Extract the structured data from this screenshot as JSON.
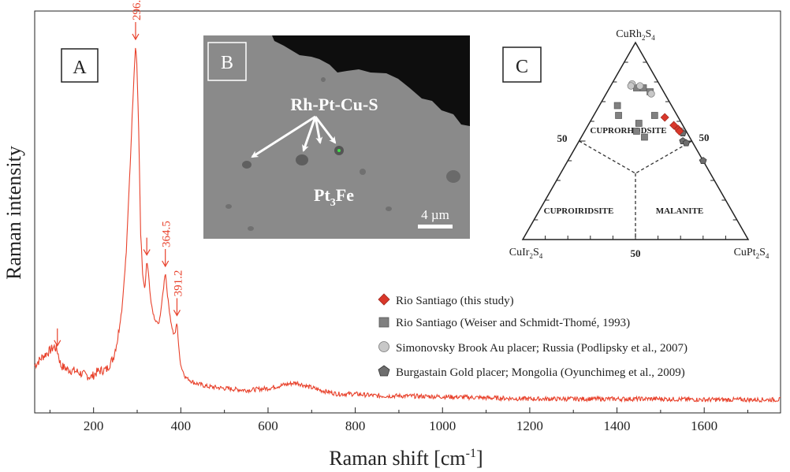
{
  "chart_data": [
    {
      "type": "line",
      "panel_label": "A",
      "xlabel": "Raman shift [cm",
      "xlabel_sup": "-1",
      "xlabel_end": "]",
      "ylabel": "Raman intensity",
      "xlim": [
        65,
        1775
      ],
      "ylim": [
        0,
        1
      ],
      "x_ticks": [
        200,
        400,
        600,
        800,
        1000,
        1200,
        1400,
        1600
      ],
      "x_tick_labels": [
        "200",
        "400",
        "600",
        "800",
        "1000",
        "1200",
        "1400",
        "1600"
      ],
      "series": [
        {
          "name": "Raman spectrum",
          "color": "#e8412b",
          "x": [
            65,
            80,
            90,
            100,
            110,
            117,
            125,
            140,
            160,
            180,
            195,
            210,
            230,
            245,
            255,
            265,
            275,
            285,
            290,
            294,
            296.3,
            299,
            303,
            308,
            313,
            318,
            322,
            326,
            331,
            340,
            350,
            358,
            364.5,
            370,
            378,
            384,
            388,
            391.2,
            395,
            400,
            410,
            430,
            460,
            500,
            550,
            600,
            640,
            665,
            690,
            720,
            760,
            800,
            850,
            900,
            1000,
            1100,
            1200,
            1300,
            1400,
            1500,
            1600,
            1700,
            1775
          ],
          "y": [
            0.1,
            0.12,
            0.13,
            0.14,
            0.15,
            0.14,
            0.1,
            0.09,
            0.085,
            0.075,
            0.07,
            0.085,
            0.09,
            0.12,
            0.17,
            0.25,
            0.4,
            0.66,
            0.8,
            0.9,
            0.95,
            0.9,
            0.75,
            0.45,
            0.33,
            0.3,
            0.38,
            0.34,
            0.27,
            0.22,
            0.21,
            0.28,
            0.35,
            0.28,
            0.21,
            0.18,
            0.19,
            0.22,
            0.15,
            0.1,
            0.07,
            0.055,
            0.045,
            0.04,
            0.035,
            0.04,
            0.05,
            0.055,
            0.045,
            0.035,
            0.025,
            0.025,
            0.02,
            0.02,
            0.018,
            0.015,
            0.012,
            0.012,
            0.012,
            0.012,
            0.01,
            0.01,
            0.01
          ]
        }
      ],
      "peak_annotations": [
        {
          "x": 296.3,
          "label": "296.3"
        },
        {
          "x": 364.5,
          "label": "364.5"
        },
        {
          "x": 391.2,
          "label": "391.2"
        },
        {
          "x": 117,
          "label": ""
        },
        {
          "x": 322,
          "label": ""
        }
      ]
    },
    {
      "type": "scatter",
      "panel_label": "C",
      "subtype": "ternary",
      "vertices": {
        "top_main": "CuRh",
        "top_sub": "2",
        "top_s": "S",
        "top_ssub": "4",
        "left_main": "CuIr",
        "left_sub": "2",
        "left_s": "S",
        "left_ssub": "4",
        "right_main": "CuPt",
        "right_sub": "2",
        "right_s": "S",
        "right_ssub": "4"
      },
      "tick_labels": {
        "left": "50",
        "right": "50",
        "bottom": "50"
      },
      "field_labels": [
        "CUPRORHODSITE",
        "CUPROIRIDSITE",
        "MALANITE"
      ],
      "series": [
        {
          "name": "Rio Santiago (this study)",
          "marker": "diamond",
          "color": "#d9372a",
          "points": [
            {
              "rh": 0.62,
              "ir": 0.06
            },
            {
              "rh": 0.58,
              "ir": 0.04
            },
            {
              "rh": 0.56,
              "ir": 0.03
            },
            {
              "rh": 0.55,
              "ir": 0.03
            }
          ]
        },
        {
          "name": "Rio Santiago (Weiser and Schmidt-Thomé, 1993)",
          "marker": "square",
          "color": "#808080",
          "points": [
            {
              "rh": 0.77,
              "ir": 0.08
            },
            {
              "rh": 0.77,
              "ir": 0.11
            },
            {
              "rh": 0.75,
              "ir": 0.06
            },
            {
              "rh": 0.68,
              "ir": 0.24
            },
            {
              "rh": 0.63,
              "ir": 0.26
            },
            {
              "rh": 0.55,
              "ir": 0.22
            },
            {
              "rh": 0.59,
              "ir": 0.19
            },
            {
              "rh": 0.52,
              "ir": 0.2
            },
            {
              "rh": 0.63,
              "ir": 0.1
            }
          ]
        },
        {
          "name": "Simonovsky Brook Au placer; Russia (Podlipsky et al., 2007)",
          "marker": "circle",
          "color": "#c8c8c8",
          "points": [
            {
              "rh": 0.79,
              "ir": 0.12
            },
            {
              "rh": 0.78,
              "ir": 0.13
            },
            {
              "rh": 0.78,
              "ir": 0.09
            },
            {
              "rh": 0.74,
              "ir": 0.06
            },
            {
              "rh": 0.55,
              "ir": 0.02
            }
          ]
        },
        {
          "name": "Burgastain Gold placer; Mongolia (Oyunchimeg et al., 2009)",
          "marker": "pentagon",
          "color": "#6e6e6e",
          "points": [
            {
              "rh": 0.54,
              "ir": 0.02
            },
            {
              "rh": 0.5,
              "ir": 0.04
            },
            {
              "rh": 0.49,
              "ir": 0.03
            },
            {
              "rh": 0.4,
              "ir": 0.0
            }
          ]
        }
      ]
    }
  ],
  "inset_b": {
    "panel_label": "B",
    "phase_label": "Rh-Pt-Cu-S",
    "matrix_main": "Pt",
    "matrix_sub": "3",
    "matrix_end": "Fe",
    "scale_label": "4 µm"
  }
}
